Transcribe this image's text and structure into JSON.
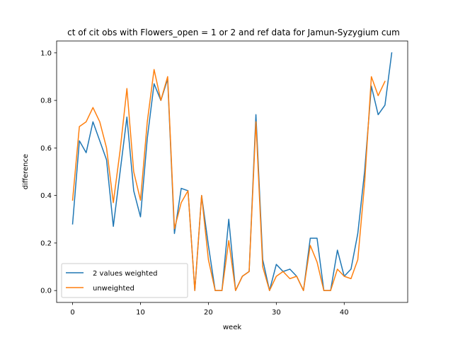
{
  "chart_data": {
    "type": "line",
    "title": "ct of cit obs with Flowers_open = 1 or 2 and ref data for Jamun-Syzygium cum",
    "xlabel": "week",
    "ylabel": "difference",
    "xlim": [
      -2.35,
      49.35
    ],
    "ylim": [
      -0.05,
      1.05
    ],
    "xticks": [
      0,
      10,
      20,
      30,
      40
    ],
    "yticks": [
      0.0,
      0.2,
      0.4,
      0.6,
      0.8,
      1.0
    ],
    "xtick_labels": [
      "0",
      "10",
      "20",
      "30",
      "40"
    ],
    "ytick_labels": [
      "0.0",
      "0.2",
      "0.4",
      "0.6",
      "0.8",
      "1.0"
    ],
    "grid": false,
    "legend_position": "lower-left",
    "series": [
      {
        "name": "2 values weighted",
        "color": "#1f77b4",
        "x": [
          0,
          1,
          2,
          3,
          4,
          5,
          6,
          7,
          8,
          9,
          10,
          11,
          12,
          13,
          14,
          15,
          16,
          17,
          18,
          19,
          20,
          21,
          22,
          23,
          24,
          25,
          26,
          27,
          28,
          29,
          30,
          31,
          32,
          33,
          34,
          35,
          36,
          37,
          38,
          39,
          40,
          41,
          42,
          43,
          44,
          45,
          46,
          47
        ],
        "y": [
          0.28,
          0.63,
          0.58,
          0.71,
          0.63,
          0.55,
          0.27,
          0.5,
          0.73,
          0.42,
          0.31,
          0.64,
          0.87,
          0.8,
          0.89,
          0.24,
          0.43,
          0.42,
          0.0,
          0.4,
          0.19,
          0.0,
          0.0,
          0.3,
          0.0,
          0.06,
          0.08,
          0.74,
          0.13,
          0.0,
          0.11,
          0.08,
          0.09,
          0.06,
          0.0,
          0.22,
          0.22,
          0.0,
          0.0,
          0.17,
          0.06,
          0.09,
          0.24,
          0.5,
          0.86,
          0.74,
          0.78,
          1.0
        ]
      },
      {
        "name": "unweighted",
        "color": "#ff7f0e",
        "x": [
          0,
          1,
          2,
          3,
          4,
          5,
          6,
          7,
          8,
          9,
          10,
          11,
          12,
          13,
          14,
          15,
          16,
          17,
          18,
          19,
          20,
          21,
          22,
          23,
          24,
          25,
          26,
          27,
          28,
          29,
          30,
          31,
          32,
          33,
          34,
          35,
          36,
          37,
          38,
          39,
          40,
          41,
          42,
          43,
          44,
          45,
          46
        ],
        "y": [
          0.38,
          0.69,
          0.71,
          0.77,
          0.71,
          0.6,
          0.37,
          0.59,
          0.85,
          0.5,
          0.38,
          0.71,
          0.93,
          0.8,
          0.9,
          0.26,
          0.37,
          0.42,
          0.0,
          0.4,
          0.13,
          0.0,
          0.0,
          0.21,
          0.0,
          0.06,
          0.08,
          0.71,
          0.1,
          0.0,
          0.06,
          0.08,
          0.05,
          0.06,
          0.0,
          0.19,
          0.12,
          0.0,
          0.0,
          0.09,
          0.06,
          0.05,
          0.13,
          0.45,
          0.9,
          0.82,
          0.88
        ]
      }
    ]
  }
}
